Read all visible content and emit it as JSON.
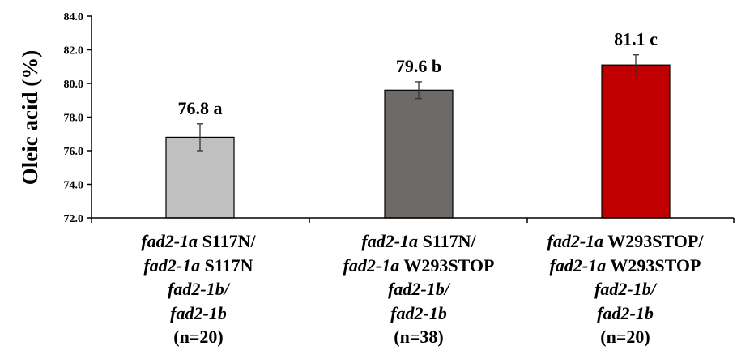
{
  "chart_data": {
    "type": "bar",
    "ylabel": "Oleic acid (%)",
    "ylim": [
      72.0,
      84.0
    ],
    "yticks": [
      "72.0",
      "74.0",
      "76.0",
      "78.0",
      "80.0",
      "82.0",
      "84.0"
    ],
    "categories": [
      {
        "line1_italic": "fad2-1a",
        "line1_rest": " S117N/",
        "line2_italic": "fad2-1a",
        "line2_rest": " S117N",
        "line3": "fad2-1b/",
        "line4": "fad2-1b",
        "n": "(n=20)"
      },
      {
        "line1_italic": "fad2-1a",
        "line1_rest": " S117N/",
        "line2_italic": "fad2-1a",
        "line2_rest": " W293STOP",
        "line3": "fad2-1b/",
        "line4": "fad2-1b",
        "n": "(n=38)"
      },
      {
        "line1_italic": "fad2-1a",
        "line1_rest": " W293STOP/",
        "line2_italic": "fad2-1a",
        "line2_rest": " W293STOP",
        "line3": "fad2-1b/",
        "line4": "fad2-1b",
        "n": "(n=20)"
      }
    ],
    "values": [
      76.8,
      79.6,
      81.1
    ],
    "errors": [
      0.8,
      0.5,
      0.6
    ],
    "data_labels": [
      "76.8 a",
      "79.6 b",
      "81.1 c"
    ],
    "colors": [
      "#c0c0c0",
      "#6e6a68",
      "#c00000"
    ]
  }
}
